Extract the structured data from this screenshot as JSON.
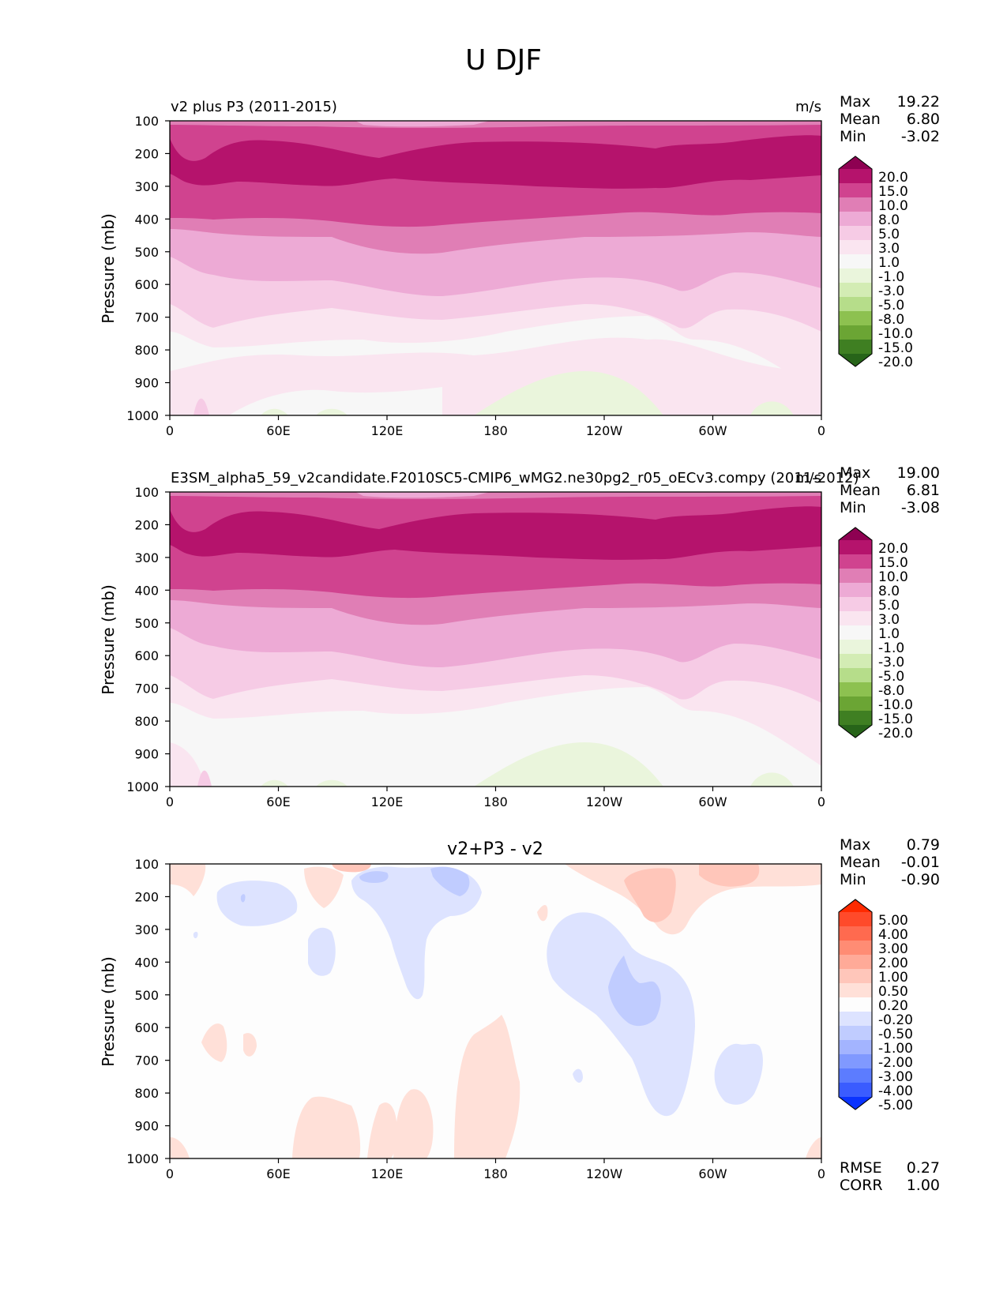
{
  "figure": {
    "title": "U DJF"
  },
  "chart_data": [
    {
      "type": "heatmap",
      "subtype": "filled-contour",
      "title": "v2 plus P3 (2011-2015)",
      "units": "m/s",
      "ylabel": "Pressure (mb)",
      "yticks": [
        "100",
        "200",
        "300",
        "400",
        "500",
        "600",
        "700",
        "800",
        "900",
        "1000"
      ],
      "xticks": [
        "0",
        "60E",
        "120E",
        "180",
        "120W",
        "60W",
        "0"
      ],
      "xlim": [
        0,
        360
      ],
      "ylim": [
        1000,
        100
      ],
      "stats": [
        {
          "label": "Max",
          "value": "19.22"
        },
        {
          "label": "Mean",
          "value": "6.80"
        },
        {
          "label": "Min",
          "value": "-3.02"
        }
      ],
      "colorbar": {
        "levels": [
          "20.0",
          "15.0",
          "10.0",
          "8.0",
          "5.0",
          "3.0",
          "1.0",
          "-1.0",
          "-3.0",
          "-5.0",
          "-8.0",
          "-10.0",
          "-15.0",
          "-20.0"
        ],
        "colors": [
          "#8e0152",
          "#b5136c",
          "#d0438f",
          "#e07eb5",
          "#edaad5",
          "#f6cbe5",
          "#fae5f0",
          "#f7f7f7",
          "#eaf5dc",
          "#d3ecb4",
          "#b6dd8a",
          "#8dc150",
          "#6ba534",
          "#3f7f22",
          "#276419"
        ]
      },
      "description_bands": "westerly jet core 15-20 m/s near 200-250 mb; weak easterlies near surface between 160E and 80W"
    },
    {
      "type": "heatmap",
      "subtype": "filled-contour",
      "title": "E3SM_alpha5_59_v2candidate.F2010SC5-CMIP6_wMG2.ne30pg2_r05_oECv3.compy (2011-2012)",
      "units": "m/s",
      "ylabel": "Pressure (mb)",
      "yticks": [
        "100",
        "200",
        "300",
        "400",
        "500",
        "600",
        "700",
        "800",
        "900",
        "1000"
      ],
      "xticks": [
        "0",
        "60E",
        "120E",
        "180",
        "120W",
        "60W",
        "0"
      ],
      "xlim": [
        0,
        360
      ],
      "ylim": [
        1000,
        100
      ],
      "stats": [
        {
          "label": "Max",
          "value": "19.00"
        },
        {
          "label": "Mean",
          "value": "6.81"
        },
        {
          "label": "Min",
          "value": "-3.08"
        }
      ],
      "colorbar": {
        "levels": [
          "20.0",
          "15.0",
          "10.0",
          "8.0",
          "5.0",
          "3.0",
          "1.0",
          "-1.0",
          "-3.0",
          "-5.0",
          "-8.0",
          "-10.0",
          "-15.0",
          "-20.0"
        ],
        "colors": [
          "#8e0152",
          "#b5136c",
          "#d0438f",
          "#e07eb5",
          "#edaad5",
          "#f6cbe5",
          "#fae5f0",
          "#f7f7f7",
          "#eaf5dc",
          "#d3ecb4",
          "#b6dd8a",
          "#8dc150",
          "#6ba534",
          "#3f7f22",
          "#276419"
        ]
      }
    },
    {
      "type": "heatmap",
      "subtype": "filled-contour-difference",
      "title": "v2+P3 - v2",
      "units": "",
      "ylabel": "Pressure (mb)",
      "yticks": [
        "100",
        "200",
        "300",
        "400",
        "500",
        "600",
        "700",
        "800",
        "900",
        "1000"
      ],
      "xticks": [
        "0",
        "60E",
        "120E",
        "180",
        "120W",
        "60W",
        "0"
      ],
      "xlim": [
        0,
        360
      ],
      "ylim": [
        1000,
        100
      ],
      "stats": [
        {
          "label": "Max",
          "value": "0.79"
        },
        {
          "label": "Mean",
          "value": "-0.01"
        },
        {
          "label": "Min",
          "value": "-0.90"
        }
      ],
      "bottom_stats": [
        {
          "label": "RMSE",
          "value": "0.27"
        },
        {
          "label": "CORR",
          "value": "1.00"
        }
      ],
      "colorbar": {
        "levels": [
          "5.00",
          "4.00",
          "3.00",
          "2.00",
          "1.00",
          "0.50",
          "0.20",
          "-0.20",
          "-0.50",
          "-1.00",
          "-2.00",
          "-3.00",
          "-4.00",
          "-5.00"
        ],
        "colors": [
          "#ff2a00",
          "#ff4a2a",
          "#ff6a4f",
          "#ff8c74",
          "#ffaa98",
          "#ffc6ba",
          "#ffe0d8",
          "#fdfdfd",
          "#dde3ff",
          "#c0ccff",
          "#a3b4ff",
          "#8099ff",
          "#5c7cff",
          "#3a5cff",
          "#0a33ff"
        ]
      }
    }
  ]
}
